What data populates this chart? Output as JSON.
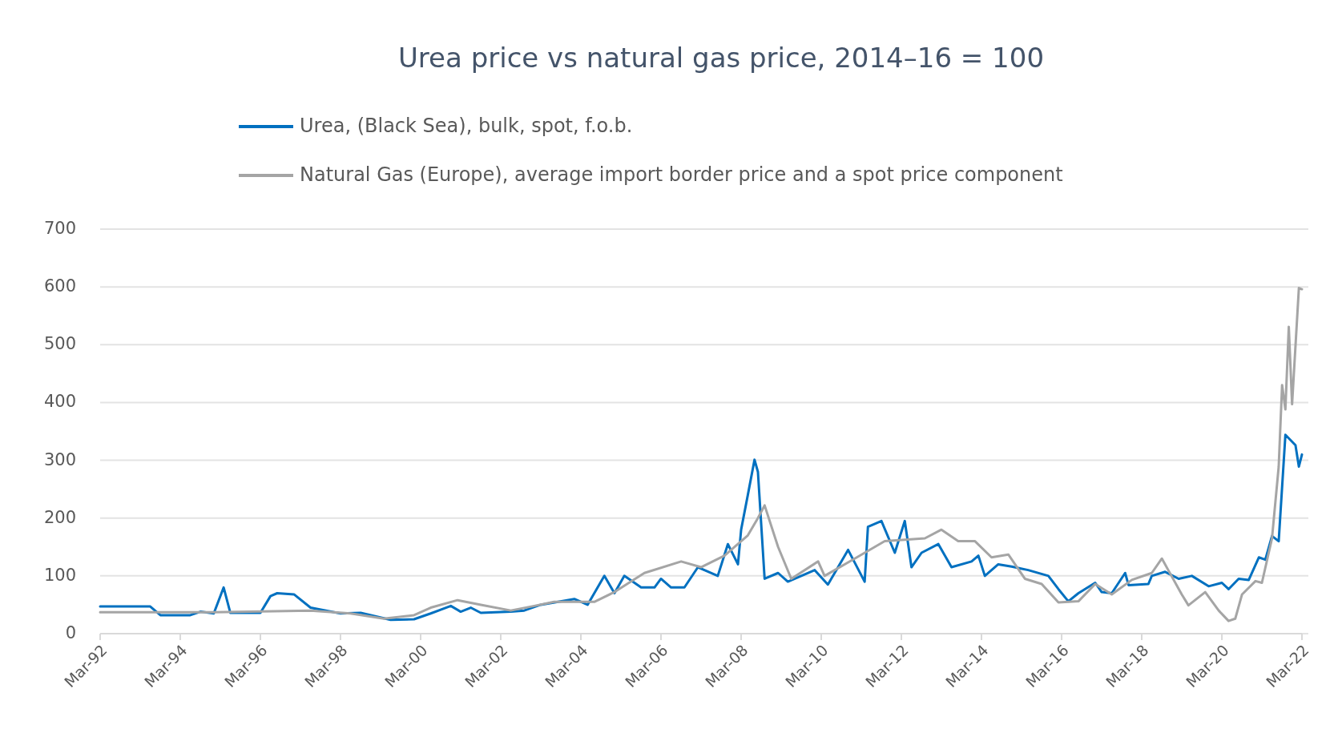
{
  "chart_data": {
    "type": "line",
    "title": "Urea price vs natural gas price, 2014–16 = 100",
    "series": [
      {
        "name": "Urea, (Black Sea), bulk, spot, f.o.b.",
        "color": "#0070c0",
        "x": [
          "1992-03",
          "1993-06",
          "1993-09",
          "1994-06",
          "1994-09",
          "1995-01",
          "1995-04",
          "1995-06",
          "1996-03",
          "1996-06",
          "1996-08",
          "1997-01",
          "1997-06",
          "1998-03",
          "1998-09",
          "1999-06",
          "2000-01",
          "2000-06",
          "2000-12",
          "2001-03",
          "2001-06",
          "2001-09",
          "2002-06",
          "2002-10",
          "2003-03",
          "2004-01",
          "2004-05",
          "2004-10",
          "2005-01",
          "2005-04",
          "2005-09",
          "2006-01",
          "2006-03",
          "2006-06",
          "2006-10",
          "2007-02",
          "2007-08",
          "2007-11",
          "2008-02",
          "2008-03",
          "2008-05",
          "2008-07",
          "2008-08",
          "2008-10",
          "2009-02",
          "2009-05",
          "2010-01",
          "2010-05",
          "2010-11",
          "2011-04",
          "2011-05",
          "2011-09",
          "2012-01",
          "2012-04",
          "2012-06",
          "2012-09",
          "2013-02",
          "2013-06",
          "2013-12",
          "2014-02",
          "2014-04",
          "2014-08",
          "2014-12",
          "2015-05",
          "2015-11",
          "2016-02",
          "2016-05",
          "2016-08",
          "2017-01",
          "2017-03",
          "2017-06",
          "2017-10",
          "2017-11",
          "2018-05",
          "2018-06",
          "2018-10",
          "2019-02",
          "2019-06",
          "2019-11",
          "2020-03",
          "2020-05",
          "2020-08",
          "2020-11",
          "2021-02",
          "2021-04",
          "2021-06",
          "2021-08",
          "2021-10",
          "2022-01",
          "2022-02",
          "2022-03"
        ],
        "values": [
          47,
          47,
          32,
          32,
          38,
          35,
          80,
          36,
          36,
          65,
          70,
          68,
          45,
          35,
          36,
          24,
          25,
          35,
          48,
          38,
          45,
          36,
          38,
          40,
          50,
          60,
          50,
          100,
          70,
          100,
          80,
          80,
          95,
          80,
          80,
          115,
          100,
          155,
          120,
          180,
          240,
          301,
          280,
          95,
          105,
          90,
          110,
          85,
          145,
          90,
          185,
          195,
          140,
          195,
          115,
          140,
          155,
          115,
          125,
          135,
          100,
          120,
          116,
          110,
          100,
          77,
          56,
          70,
          88,
          72,
          70,
          105,
          84,
          86,
          100,
          107,
          95,
          100,
          82,
          88,
          77,
          95,
          93,
          132,
          128,
          169,
          160,
          344,
          326,
          289,
          310
        ]
      },
      {
        "name": "Natural Gas (Europe), average import border price and a spot price component",
        "color": "#a5a5a5",
        "x": [
          "1992-03",
          "1995-01",
          "1997-06",
          "1998-06",
          "1999-04",
          "2000-01",
          "2000-06",
          "2001-02",
          "2001-09",
          "2002-06",
          "2003-01",
          "2003-07",
          "2004-07",
          "2005-01",
          "2005-10",
          "2006-09",
          "2007-03",
          "2007-10",
          "2008-05",
          "2008-08",
          "2008-10",
          "2009-02",
          "2009-06",
          "2010-02",
          "2010-04",
          "2011-01",
          "2011-10",
          "2012-10",
          "2013-03",
          "2013-08",
          "2014-01",
          "2014-06",
          "2014-11",
          "2015-04",
          "2015-09",
          "2016-02",
          "2016-08",
          "2017-01",
          "2017-06",
          "2017-12",
          "2018-06",
          "2018-09",
          "2018-11",
          "2019-03",
          "2019-05",
          "2019-10",
          "2020-02",
          "2020-05",
          "2020-07",
          "2020-09",
          "2021-01",
          "2021-03",
          "2021-06",
          "2021-08",
          "2021-09",
          "2021-10",
          "2021-11",
          "2021-12",
          "2022-02",
          "2022-03"
        ],
        "values": [
          37,
          37,
          40,
          35,
          26,
          32,
          45,
          58,
          50,
          40,
          48,
          55,
          55,
          72,
          105,
          125,
          115,
          135,
          170,
          200,
          222,
          150,
          95,
          125,
          100,
          130,
          160,
          165,
          180,
          160,
          160,
          132,
          137,
          95,
          86,
          54,
          56,
          86,
          68,
          93,
          105,
          130,
          109,
          68,
          49,
          72,
          40,
          22,
          26,
          68,
          91,
          88,
          165,
          289,
          430,
          388,
          531,
          397,
          598,
          596
        ]
      }
    ],
    "xlim": [
      "1992-03",
      "2022-03"
    ],
    "xticks": [
      {
        "value": "1992-03",
        "label": "Mar-92"
      },
      {
        "value": "1994-03",
        "label": "Mar-94"
      },
      {
        "value": "1996-03",
        "label": "Mar-96"
      },
      {
        "value": "1998-03",
        "label": "Mar-98"
      },
      {
        "value": "2000-03",
        "label": "Mar-00"
      },
      {
        "value": "2002-03",
        "label": "Mar-02"
      },
      {
        "value": "2004-03",
        "label": "Mar-04"
      },
      {
        "value": "2006-03",
        "label": "Mar-06"
      },
      {
        "value": "2008-03",
        "label": "Mar-08"
      },
      {
        "value": "2010-03",
        "label": "Mar-10"
      },
      {
        "value": "2012-03",
        "label": "Mar-12"
      },
      {
        "value": "2014-03",
        "label": "Mar-14"
      },
      {
        "value": "2016-03",
        "label": "Mar-16"
      },
      {
        "value": "2018-03",
        "label": "Mar-18"
      },
      {
        "value": "2020-03",
        "label": "Mar-20"
      },
      {
        "value": "2022-03",
        "label": "Mar-22"
      }
    ],
    "ylim": [
      0,
      700
    ],
    "yticks": [
      0,
      100,
      200,
      300,
      400,
      500,
      600,
      700
    ],
    "grid": "y",
    "legend": "top",
    "marker": "none",
    "line_style": "solid"
  }
}
